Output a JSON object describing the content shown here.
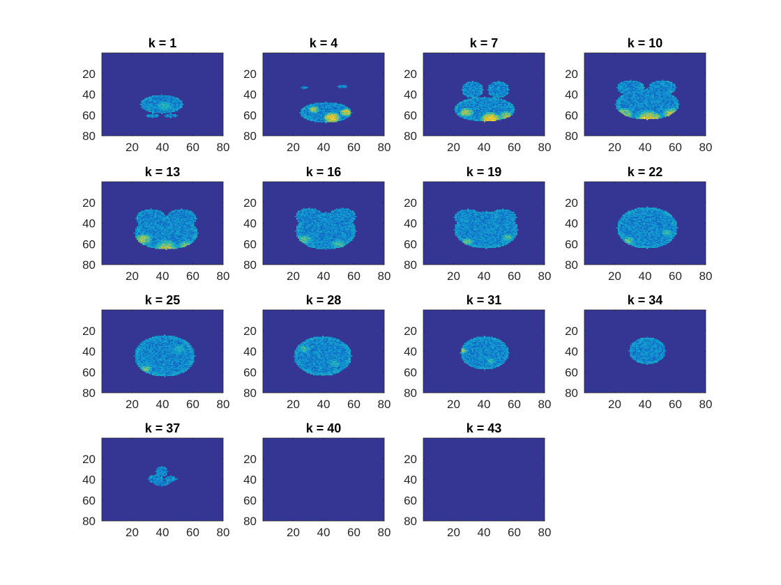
{
  "colors": {
    "background": "#353594",
    "figure_bg": "#ffffff",
    "text": "#262626",
    "title": "#000000",
    "colormap": [
      "#352a87",
      "#1462c4",
      "#0f9ad2",
      "#2bb6b4",
      "#8bc465",
      "#e1b938",
      "#f9e01c"
    ]
  },
  "chart_data": [
    {
      "type": "heatmap",
      "title": "k = 1",
      "xticks": [
        20,
        40,
        60,
        80
      ],
      "yticks": [
        20,
        40,
        60,
        80
      ],
      "xlim": [
        0,
        80
      ],
      "ylim": [
        80,
        0
      ],
      "blobs": [
        {
          "cx": 40,
          "cy": 50,
          "rx": 14,
          "ry": 9
        },
        {
          "cx": 34,
          "cy": 61,
          "rx": 4,
          "ry": 2
        },
        {
          "cx": 46,
          "cy": 61,
          "rx": 4,
          "ry": 2
        }
      ],
      "hot": [
        {
          "cx": 42,
          "cy": 52,
          "r": 5,
          "w": 0.2
        }
      ]
    },
    {
      "type": "heatmap",
      "title": "k = 4",
      "xticks": [
        20,
        40,
        60,
        80
      ],
      "yticks": [
        20,
        40,
        60,
        80
      ],
      "xlim": [
        0,
        80
      ],
      "ylim": [
        80,
        0
      ],
      "blobs": [
        {
          "cx": 42,
          "cy": 58,
          "rx": 17,
          "ry": 10
        },
        {
          "cx": 28,
          "cy": 34,
          "rx": 2,
          "ry": 1.5
        },
        {
          "cx": 53,
          "cy": 33,
          "rx": 3,
          "ry": 1.5
        }
      ],
      "hot": [
        {
          "cx": 46,
          "cy": 63,
          "r": 6,
          "w": 0.65
        },
        {
          "cx": 55,
          "cy": 58,
          "r": 4,
          "w": 0.6
        },
        {
          "cx": 34,
          "cy": 55,
          "r": 4,
          "w": 0.45
        }
      ]
    },
    {
      "type": "heatmap",
      "title": "k = 7",
      "xticks": [
        20,
        40,
        60,
        80
      ],
      "yticks": [
        20,
        40,
        60,
        80
      ],
      "xlim": [
        0,
        80
      ],
      "ylim": [
        80,
        0
      ],
      "blobs": [
        {
          "cx": 41,
          "cy": 55,
          "rx": 20,
          "ry": 12
        },
        {
          "cx": 33,
          "cy": 36,
          "rx": 7,
          "ry": 8
        },
        {
          "cx": 50,
          "cy": 36,
          "rx": 7,
          "ry": 8
        }
      ],
      "hot": [
        {
          "cx": 45,
          "cy": 64,
          "r": 7,
          "w": 0.65
        },
        {
          "cx": 29,
          "cy": 58,
          "r": 5,
          "w": 0.5
        },
        {
          "cx": 55,
          "cy": 61,
          "r": 5,
          "w": 0.45
        }
      ]
    },
    {
      "type": "heatmap",
      "title": "k = 10",
      "xticks": [
        20,
        40,
        60,
        80
      ],
      "yticks": [
        20,
        40,
        60,
        80
      ],
      "xlim": [
        0,
        80
      ],
      "ylim": [
        80,
        0
      ],
      "blobs": [
        {
          "cx": 42,
          "cy": 50,
          "rx": 21,
          "ry": 15
        },
        {
          "cx": 31,
          "cy": 34,
          "rx": 9,
          "ry": 7
        },
        {
          "cx": 52,
          "cy": 34,
          "rx": 9,
          "ry": 7
        }
      ],
      "hot": [
        {
          "cx": 43,
          "cy": 64,
          "r": 9,
          "w": 0.55
        },
        {
          "cx": 27,
          "cy": 59,
          "r": 6,
          "w": 0.4
        },
        {
          "cx": 58,
          "cy": 59,
          "r": 6,
          "w": 0.45
        }
      ]
    },
    {
      "type": "heatmap",
      "title": "k = 13",
      "xticks": [
        20,
        40,
        60,
        80
      ],
      "yticks": [
        20,
        40,
        60,
        80
      ],
      "xlim": [
        0,
        80
      ],
      "ylim": [
        80,
        0
      ],
      "blobs": [
        {
          "cx": 43,
          "cy": 50,
          "rx": 21,
          "ry": 16
        },
        {
          "cx": 33,
          "cy": 36,
          "rx": 10,
          "ry": 9
        },
        {
          "cx": 53,
          "cy": 36,
          "rx": 10,
          "ry": 9
        }
      ],
      "hot": [
        {
          "cx": 28,
          "cy": 56,
          "r": 6,
          "w": 0.45
        },
        {
          "cx": 43,
          "cy": 64,
          "r": 8,
          "w": 0.4
        },
        {
          "cx": 56,
          "cy": 62,
          "r": 5,
          "w": 0.35
        }
      ]
    },
    {
      "type": "heatmap",
      "title": "k = 16",
      "xticks": [
        20,
        40,
        60,
        80
      ],
      "yticks": [
        20,
        40,
        60,
        80
      ],
      "xlim": [
        0,
        80
      ],
      "ylim": [
        80,
        0
      ],
      "blobs": [
        {
          "cx": 42,
          "cy": 48,
          "rx": 20,
          "ry": 18
        },
        {
          "cx": 31,
          "cy": 34,
          "rx": 9,
          "ry": 8
        },
        {
          "cx": 53,
          "cy": 34,
          "rx": 9,
          "ry": 8
        }
      ],
      "hot": [
        {
          "cx": 28,
          "cy": 56,
          "r": 5,
          "w": 0.3
        },
        {
          "cx": 50,
          "cy": 60,
          "r": 5,
          "w": 0.25
        }
      ]
    },
    {
      "type": "heatmap",
      "title": "k = 19",
      "xticks": [
        20,
        40,
        60,
        80
      ],
      "yticks": [
        20,
        40,
        60,
        80
      ],
      "xlim": [
        0,
        80
      ],
      "ylim": [
        80,
        0
      ],
      "blobs": [
        {
          "cx": 42,
          "cy": 47,
          "rx": 21,
          "ry": 18
        },
        {
          "cx": 30,
          "cy": 35,
          "rx": 9,
          "ry": 8
        },
        {
          "cx": 53,
          "cy": 35,
          "rx": 9,
          "ry": 8
        }
      ],
      "hot": [
        {
          "cx": 30,
          "cy": 58,
          "r": 4,
          "w": 0.3
        },
        {
          "cx": 56,
          "cy": 54,
          "r": 4,
          "w": 0.3
        }
      ]
    },
    {
      "type": "heatmap",
      "title": "k = 22",
      "xticks": [
        20,
        40,
        60,
        80
      ],
      "yticks": [
        20,
        40,
        60,
        80
      ],
      "xlim": [
        0,
        80
      ],
      "ylim": [
        80,
        0
      ],
      "blobs": [
        {
          "cx": 42,
          "cy": 45,
          "rx": 20,
          "ry": 20
        }
      ],
      "hot": [
        {
          "cx": 30,
          "cy": 57,
          "r": 4,
          "w": 0.3
        },
        {
          "cx": 55,
          "cy": 50,
          "r": 4,
          "w": 0.25
        }
      ]
    },
    {
      "type": "heatmap",
      "title": "k = 25",
      "xticks": [
        20,
        40,
        60,
        80
      ],
      "yticks": [
        20,
        40,
        60,
        80
      ],
      "xlim": [
        0,
        80
      ],
      "ylim": [
        80,
        0
      ],
      "blobs": [
        {
          "cx": 42,
          "cy": 45,
          "rx": 20,
          "ry": 20
        }
      ],
      "hot": [
        {
          "cx": 30,
          "cy": 57,
          "r": 4,
          "w": 0.3
        },
        {
          "cx": 52,
          "cy": 38,
          "r": 4,
          "w": 0.2
        }
      ]
    },
    {
      "type": "heatmap",
      "title": "k = 28",
      "xticks": [
        20,
        40,
        60,
        80
      ],
      "yticks": [
        20,
        40,
        60,
        80
      ],
      "xlim": [
        0,
        80
      ],
      "ylim": [
        80,
        0
      ],
      "blobs": [
        {
          "cx": 40,
          "cy": 45,
          "rx": 19,
          "ry": 19
        }
      ],
      "hot": [
        {
          "cx": 28,
          "cy": 38,
          "r": 4,
          "w": 0.25
        },
        {
          "cx": 48,
          "cy": 52,
          "r": 4,
          "w": 0.2
        }
      ]
    },
    {
      "type": "heatmap",
      "title": "k = 31",
      "xticks": [
        20,
        40,
        60,
        80
      ],
      "yticks": [
        20,
        40,
        60,
        80
      ],
      "xlim": [
        0,
        80
      ],
      "ylim": [
        80,
        0
      ],
      "blobs": [
        {
          "cx": 41,
          "cy": 42,
          "rx": 16,
          "ry": 16
        }
      ],
      "hot": [
        {
          "cx": 27,
          "cy": 40,
          "r": 3,
          "w": 0.35
        },
        {
          "cx": 45,
          "cy": 50,
          "r": 3,
          "w": 0.2
        }
      ]
    },
    {
      "type": "heatmap",
      "title": "k = 34",
      "xticks": [
        20,
        40,
        60,
        80
      ],
      "yticks": [
        20,
        40,
        60,
        80
      ],
      "xlim": [
        0,
        80
      ],
      "ylim": [
        80,
        0
      ],
      "blobs": [
        {
          "cx": 42,
          "cy": 40,
          "rx": 12,
          "ry": 13
        }
      ],
      "hot": []
    },
    {
      "type": "heatmap",
      "title": "k = 37",
      "xticks": [
        20,
        40,
        60,
        80
      ],
      "yticks": [
        20,
        40,
        60,
        80
      ],
      "xlim": [
        0,
        80
      ],
      "ylim": [
        80,
        0
      ],
      "blobs": [
        {
          "cx": 40,
          "cy": 33,
          "rx": 4,
          "ry": 5
        },
        {
          "cx": 36,
          "cy": 40,
          "rx": 5,
          "ry": 4
        },
        {
          "cx": 46,
          "cy": 40,
          "rx": 4,
          "ry": 3
        },
        {
          "cx": 40,
          "cy": 44,
          "rx": 5,
          "ry": 3
        }
      ],
      "hot": []
    },
    {
      "type": "heatmap",
      "title": "k = 40",
      "xticks": [
        20,
        40,
        60,
        80
      ],
      "yticks": [
        20,
        40,
        60,
        80
      ],
      "xlim": [
        0,
        80
      ],
      "ylim": [
        80,
        0
      ],
      "blobs": [],
      "hot": []
    },
    {
      "type": "heatmap",
      "title": "k = 43",
      "xticks": [
        20,
        40,
        60,
        80
      ],
      "yticks": [
        20,
        40,
        60,
        80
      ],
      "xlim": [
        0,
        80
      ],
      "ylim": [
        80,
        0
      ],
      "blobs": [],
      "hot": []
    }
  ]
}
